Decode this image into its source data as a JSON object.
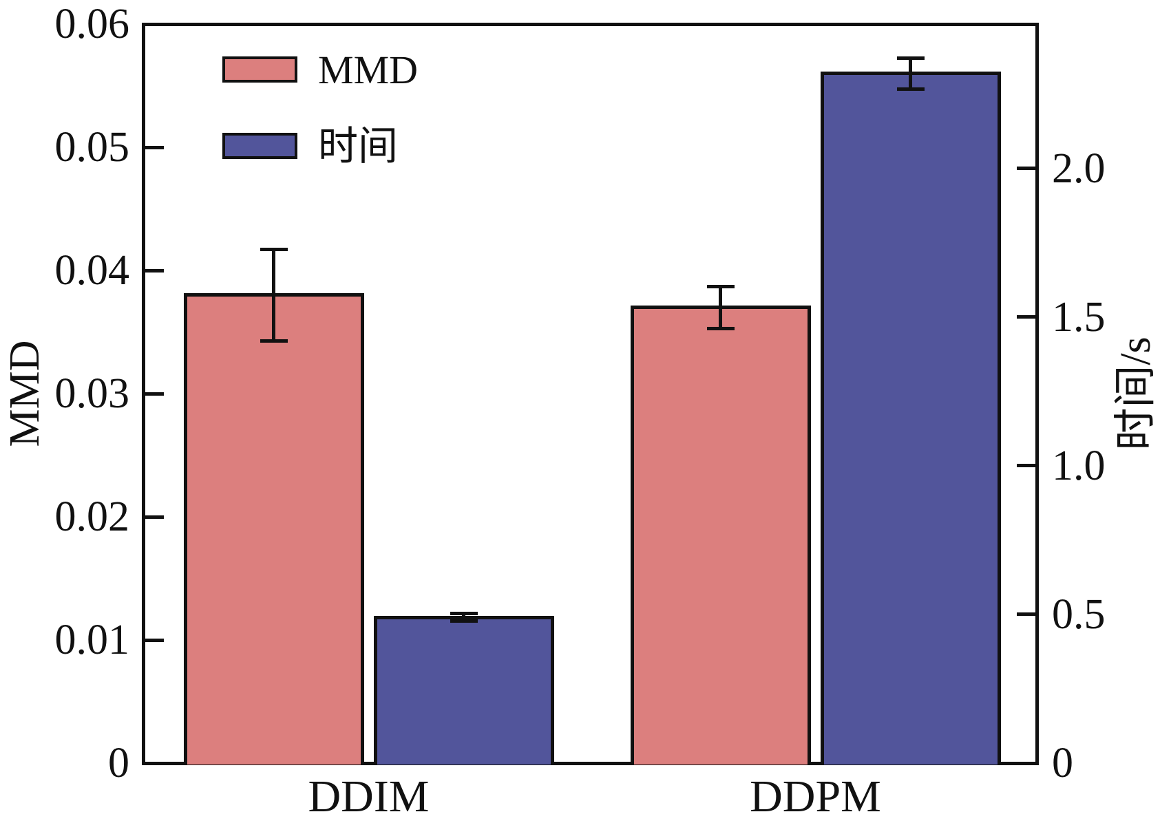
{
  "chart_data": {
    "type": "bar",
    "categories": [
      "DDIM",
      "DDPM"
    ],
    "series": [
      {
        "name": "MMD",
        "axis": "left",
        "color": "#dc7f7e",
        "values": [
          0.038,
          0.037
        ],
        "errors": [
          0.0037,
          0.0017
        ]
      },
      {
        "name": "时间",
        "axis": "right",
        "color": "#52559b",
        "values": [
          0.49,
          2.32
        ],
        "errors": [
          0.013,
          0.052
        ]
      }
    ],
    "left_axis": {
      "label": "MMD",
      "min": 0,
      "max": 0.06,
      "tick_values": [
        0,
        0.01,
        0.02,
        0.03,
        0.04,
        0.05,
        0.06
      ],
      "tick_labels": [
        "0",
        "0.01",
        "0.02",
        "0.03",
        "0.04",
        "0.05",
        "0.06"
      ]
    },
    "right_axis": {
      "label": "时间/s",
      "min": 0,
      "max": 2.486,
      "tick_values": [
        0,
        0.5,
        1.0,
        1.5,
        2.0
      ],
      "tick_labels": [
        "0",
        "0.5",
        "1.0",
        "1.5",
        "2.0"
      ]
    },
    "legend": {
      "items": [
        "MMD",
        "时间"
      ],
      "position": "upper-left"
    },
    "grid": false,
    "title": ""
  }
}
